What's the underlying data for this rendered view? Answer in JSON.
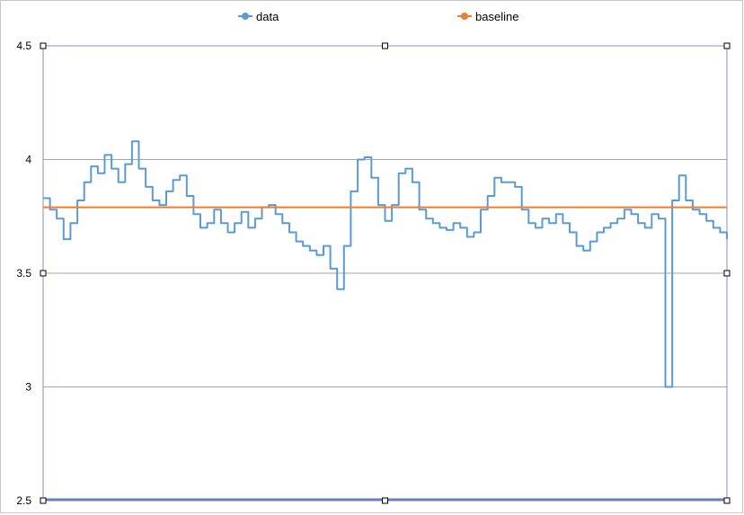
{
  "chart_data": {
    "type": "line",
    "title": "",
    "xlabel": "",
    "ylabel": "",
    "ylim": [
      2.5,
      4.5
    ],
    "yticks": [
      2.5,
      3,
      3.5,
      4,
      4.5
    ],
    "ytick_labels": [
      "2.5",
      "3",
      "3.5",
      "4",
      "4.5"
    ],
    "grid": true,
    "legend_position": "top",
    "series": [
      {
        "name": "data",
        "color": "#5b9bd5",
        "step": true,
        "x": [
          0,
          1,
          2,
          3,
          4,
          5,
          6,
          7,
          8,
          9,
          10,
          11,
          12,
          13,
          14,
          15,
          16,
          17,
          18,
          19,
          20,
          21,
          22,
          23,
          24,
          25,
          26,
          27,
          28,
          29,
          30,
          31,
          32,
          33,
          34,
          35,
          36,
          37,
          38,
          39,
          40,
          41,
          42,
          43,
          44,
          45,
          46,
          47,
          48,
          49,
          50,
          51,
          52,
          53,
          54,
          55,
          56,
          57,
          58,
          59,
          60,
          61,
          62,
          63,
          64,
          65,
          66,
          67,
          68,
          69,
          70,
          71,
          72,
          73,
          74,
          75,
          76,
          77,
          78,
          79,
          80,
          81,
          82,
          83,
          84,
          85,
          86,
          87,
          88,
          89,
          90,
          91,
          92,
          93,
          94,
          95,
          96,
          97,
          98,
          99,
          100
        ],
        "values": [
          3.83,
          3.78,
          3.74,
          3.65,
          3.72,
          3.82,
          3.9,
          3.97,
          3.94,
          4.02,
          3.96,
          3.9,
          3.98,
          4.08,
          3.96,
          3.88,
          3.82,
          3.8,
          3.86,
          3.91,
          3.93,
          3.84,
          3.76,
          3.7,
          3.72,
          3.78,
          3.72,
          3.68,
          3.72,
          3.77,
          3.7,
          3.74,
          3.79,
          3.8,
          3.76,
          3.72,
          3.68,
          3.64,
          3.62,
          3.6,
          3.58,
          3.62,
          3.52,
          3.43,
          3.62,
          3.86,
          4.0,
          4.01,
          3.92,
          3.8,
          3.73,
          3.8,
          3.94,
          3.96,
          3.9,
          3.78,
          3.74,
          3.72,
          3.7,
          3.69,
          3.72,
          3.7,
          3.66,
          3.68,
          3.78,
          3.84,
          3.92,
          3.9,
          3.9,
          3.88,
          3.78,
          3.72,
          3.7,
          3.74,
          3.72,
          3.76,
          3.72,
          3.68,
          3.62,
          3.6,
          3.64,
          3.68,
          3.7,
          3.72,
          3.74,
          3.78,
          3.76,
          3.72,
          3.7,
          3.76,
          3.74,
          3.0,
          3.82,
          3.93,
          3.82,
          3.78,
          3.76,
          3.73,
          3.7,
          3.68,
          3.65
        ]
      },
      {
        "name": "baseline",
        "color": "#ed7d31",
        "x": [
          0,
          100
        ],
        "values": [
          3.79,
          3.79
        ]
      }
    ]
  }
}
